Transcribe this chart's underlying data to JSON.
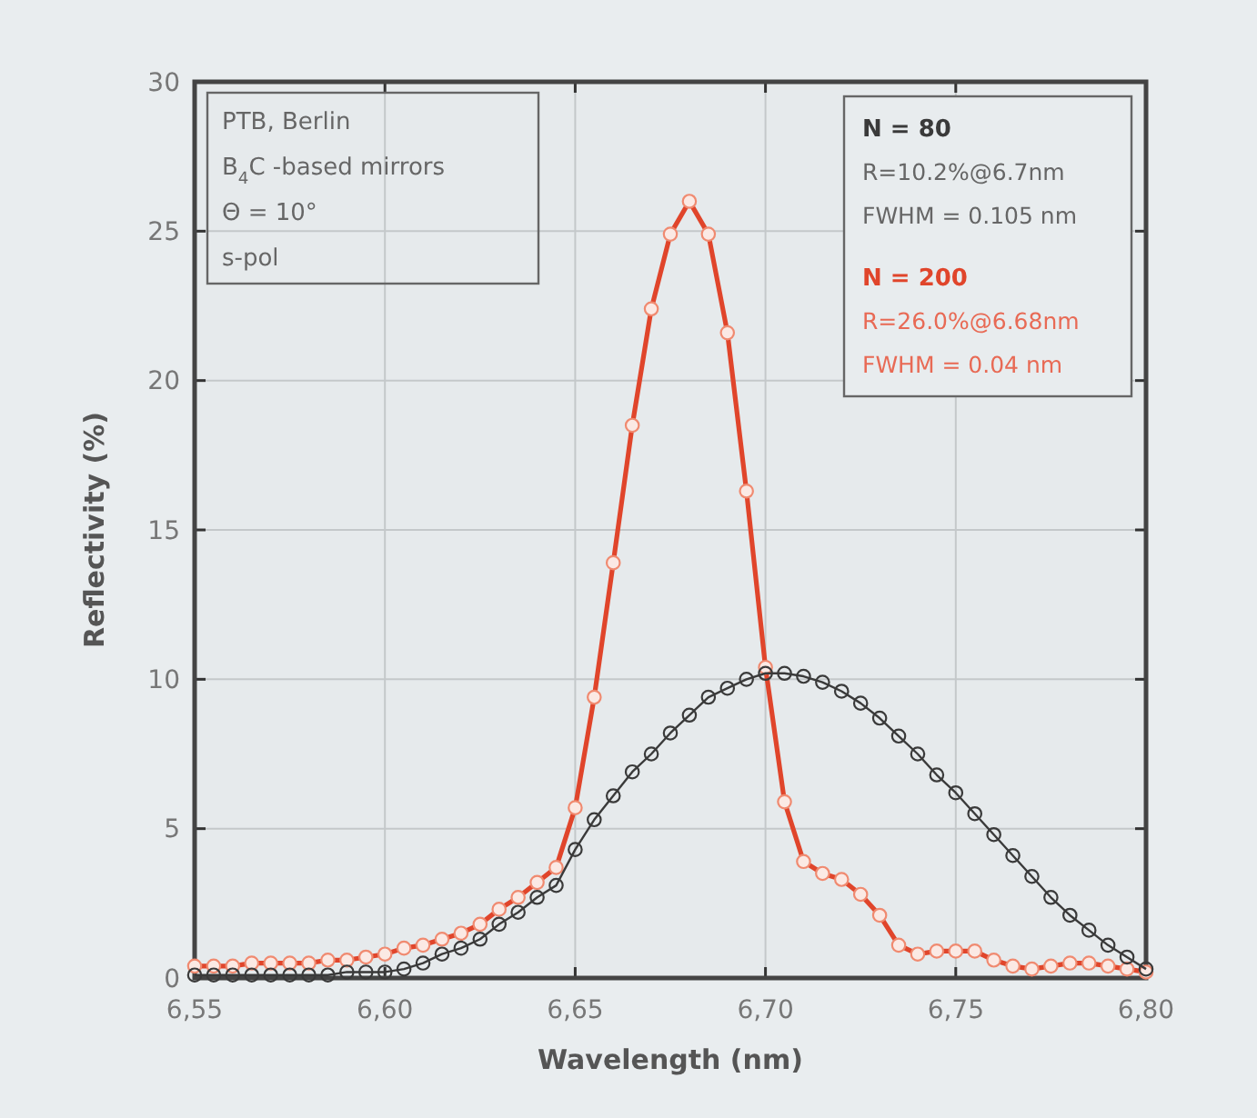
{
  "chart_data": {
    "type": "line",
    "xlabel": "Wavelength (nm)",
    "ylabel": "Reflectivity (%)",
    "xlim": [
      6.55,
      6.8
    ],
    "xticks": [
      {
        "value": 6.55,
        "label": "6,55"
      },
      {
        "value": 6.6,
        "label": "6,60"
      },
      {
        "value": 6.65,
        "label": "6,65"
      },
      {
        "value": 6.7,
        "label": "6,70"
      },
      {
        "value": 6.75,
        "label": "6,75"
      },
      {
        "value": 6.8,
        "label": "6,80"
      }
    ],
    "ylim": [
      0,
      30
    ],
    "yticks": [
      0,
      5,
      10,
      15,
      20,
      25,
      30
    ],
    "grid": true,
    "legend": "top right",
    "marker": "circle",
    "line_style": "solid",
    "x": [
      6.55,
      6.555,
      6.56,
      6.565,
      6.57,
      6.575,
      6.58,
      6.585,
      6.59,
      6.595,
      6.6,
      6.605,
      6.61,
      6.615,
      6.62,
      6.625,
      6.63,
      6.635,
      6.64,
      6.645,
      6.65,
      6.655,
      6.66,
      6.665,
      6.67,
      6.675,
      6.68,
      6.685,
      6.69,
      6.695,
      6.7,
      6.705,
      6.71,
      6.715,
      6.72,
      6.725,
      6.73,
      6.735,
      6.74,
      6.745,
      6.75,
      6.755,
      6.76,
      6.765,
      6.77,
      6.775,
      6.78,
      6.785,
      6.79,
      6.795,
      6.8
    ],
    "series": [
      {
        "name": "N = 80",
        "color": "#3a3a3a",
        "values": [
          0.1,
          0.1,
          0.1,
          0.1,
          0.1,
          0.1,
          0.1,
          0.1,
          0.2,
          0.2,
          0.2,
          0.3,
          0.5,
          0.8,
          1.0,
          1.3,
          1.8,
          2.2,
          2.7,
          3.1,
          4.3,
          5.3,
          6.1,
          6.9,
          7.5,
          8.2,
          8.8,
          9.4,
          9.7,
          10.0,
          10.2,
          10.2,
          10.1,
          9.9,
          9.6,
          9.2,
          8.7,
          8.1,
          7.5,
          6.8,
          6.2,
          5.5,
          4.8,
          4.1,
          3.4,
          2.7,
          2.1,
          1.6,
          1.1,
          0.7,
          0.3
        ]
      },
      {
        "name": "N = 200",
        "color": "#e0452b",
        "values": [
          0.4,
          0.4,
          0.4,
          0.5,
          0.5,
          0.5,
          0.5,
          0.6,
          0.6,
          0.7,
          0.8,
          1.0,
          1.1,
          1.3,
          1.5,
          1.8,
          2.3,
          2.7,
          3.2,
          3.7,
          5.7,
          9.4,
          13.9,
          18.5,
          22.4,
          24.9,
          26.0,
          24.9,
          21.6,
          16.3,
          10.4,
          5.9,
          3.9,
          3.5,
          3.3,
          2.8,
          2.1,
          1.1,
          0.8,
          0.9,
          0.9,
          0.9,
          0.6,
          0.4,
          0.3,
          0.4,
          0.5,
          0.5,
          0.4,
          0.3,
          0.2
        ]
      }
    ],
    "annotations": [
      "PTB, Berlin",
      "B$_{4}$C -based mirrors",
      "Θ = 10°",
      "s-pol",
      "R=10.2%@6.7nm",
      "FWHM = 0.105 nm",
      "R=26.0%@6.68nm",
      "FWHM = 0.04 nm"
    ]
  }
}
